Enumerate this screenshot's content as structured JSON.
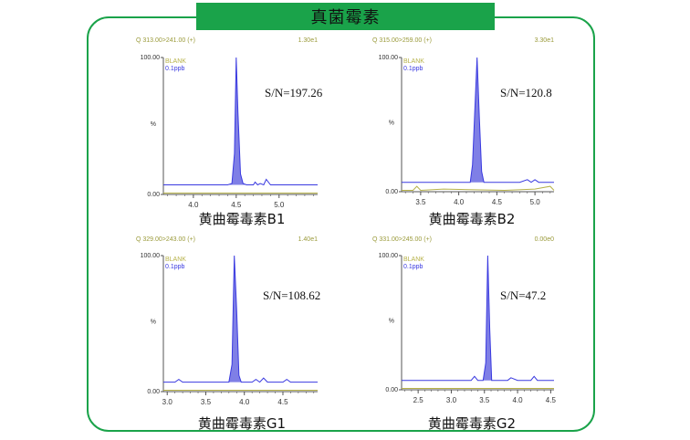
{
  "banner_title": "真菌霉素",
  "colors": {
    "border": "#1aa34a",
    "banner": "#1aa34a",
    "sample": "#3a3ae0",
    "sample_fill": "#7f7fe6",
    "blank": "#b7b24a",
    "header_text": "#9a9a3a",
    "axis": "#555555"
  },
  "chart_data": [
    {
      "type": "line",
      "header_left": "Q 313.00>241.00 (+)",
      "header_right": "1.30e1",
      "legend": [
        "BLANK",
        "0.1ppb"
      ],
      "ylabel": "%",
      "ytick_labels": [
        "100.00",
        "0.00"
      ],
      "xlim": [
        3.65,
        5.45
      ],
      "ylim": [
        0,
        100
      ],
      "xticks": [
        4.0,
        4.5,
        5.0
      ],
      "xtick_labels": [
        "4.0",
        "4.5",
        "5.0"
      ],
      "sn_label": "S/N=197.26",
      "caption": "黄曲霉毒素B1",
      "series": [
        {
          "name": "0.1ppb",
          "x": [
            3.65,
            4.0,
            4.4,
            4.45,
            4.48,
            4.5,
            4.52,
            4.55,
            4.58,
            4.62,
            4.65,
            4.7,
            4.72,
            4.75,
            4.78,
            4.82,
            4.85,
            4.9,
            5.0,
            5.2,
            5.45
          ],
          "y": [
            7,
            7,
            7,
            8,
            30,
            100,
            60,
            15,
            8,
            7,
            7,
            7,
            9,
            7,
            8,
            7,
            11,
            7,
            7,
            7,
            7
          ]
        },
        {
          "name": "BLANK",
          "x": [
            3.65,
            4.0,
            4.5,
            5.0,
            5.45
          ],
          "y": [
            1,
            1,
            1,
            1,
            1
          ]
        }
      ]
    },
    {
      "type": "line",
      "header_left": "Q 315.00>259.00 (+)",
      "header_right": "3.30e1",
      "legend": [
        "BLANK",
        "0.1ppb"
      ],
      "ylabel": "%",
      "ytick_labels": [
        "100.00",
        "0.00"
      ],
      "xlim": [
        3.25,
        5.25
      ],
      "ylim": [
        0,
        100
      ],
      "xticks": [
        3.5,
        4.0,
        4.5,
        5.0
      ],
      "xtick_labels": [
        "3.5",
        "4.0",
        "4.5",
        "5.0"
      ],
      "sn_label": "S/N=120.8",
      "caption": "黄曲霉毒素B2",
      "series": [
        {
          "name": "0.1ppb",
          "x": [
            3.25,
            4.0,
            4.15,
            4.18,
            4.21,
            4.24,
            4.27,
            4.3,
            4.33,
            4.4,
            4.8,
            4.9,
            4.95,
            5.0,
            5.05,
            5.25
          ],
          "y": [
            7,
            7,
            7,
            20,
            60,
            100,
            55,
            15,
            7,
            7,
            7,
            9,
            7,
            9,
            7,
            7
          ]
        },
        {
          "name": "BLANK",
          "x": [
            3.25,
            3.4,
            3.45,
            3.5,
            3.8,
            4.6,
            5.0,
            5.2,
            5.25
          ],
          "y": [
            1,
            1,
            4,
            1,
            2,
            1,
            2,
            4,
            1
          ]
        }
      ]
    },
    {
      "type": "line",
      "header_left": "Q 329.00>243.00 (+)",
      "header_right": "1.40e1",
      "legend": [
        "BLANK",
        "0.1ppb"
      ],
      "ylabel": "%",
      "ytick_labels": [
        "100.00",
        "0.00"
      ],
      "xlim": [
        2.95,
        4.95
      ],
      "ylim": [
        0,
        100
      ],
      "xticks": [
        3.0,
        3.5,
        4.0,
        4.5
      ],
      "xtick_labels": [
        "3.0",
        "3.5",
        "4.0",
        "4.5"
      ],
      "sn_label": "S/N=108.62",
      "caption": "黄曲霉毒素G1",
      "series": [
        {
          "name": "0.1ppb",
          "x": [
            2.95,
            3.1,
            3.15,
            3.2,
            3.7,
            3.8,
            3.84,
            3.87,
            3.9,
            3.93,
            3.96,
            4.0,
            4.1,
            4.15,
            4.2,
            4.25,
            4.3,
            4.5,
            4.55,
            4.6,
            4.95
          ],
          "y": [
            7,
            7,
            9,
            7,
            7,
            7,
            20,
            100,
            60,
            12,
            7,
            7,
            7,
            9,
            7,
            10,
            7,
            7,
            9,
            7,
            7
          ]
        },
        {
          "name": "BLANK",
          "x": [
            2.95,
            3.5,
            4.0,
            4.5,
            4.95
          ],
          "y": [
            1,
            1,
            1,
            1,
            1
          ]
        }
      ]
    },
    {
      "type": "line",
      "header_left": "Q 331.00>245.00 (+)",
      "header_right": "0.00e0",
      "legend": [
        "BLANK",
        "0.1ppb"
      ],
      "ylabel": "%",
      "ytick_labels": [
        "100.00",
        "0.00"
      ],
      "xlim": [
        2.25,
        4.55
      ],
      "ylim": [
        0,
        100
      ],
      "xticks": [
        2.5,
        3.0,
        3.5,
        4.0,
        4.5
      ],
      "xtick_labels": [
        "2.5",
        "3.0",
        "3.5",
        "4.0",
        "4.5"
      ],
      "sn_label": "S/N=47.2",
      "caption": "黄曲霉毒素G2",
      "series": [
        {
          "name": "0.1ppb",
          "x": [
            2.25,
            3.3,
            3.35,
            3.4,
            3.48,
            3.52,
            3.55,
            3.58,
            3.61,
            3.7,
            3.85,
            3.9,
            4.0,
            4.2,
            4.25,
            4.3,
            4.55
          ],
          "y": [
            7,
            7,
            10,
            7,
            7,
            20,
            100,
            45,
            7,
            7,
            7,
            9,
            7,
            7,
            10,
            7,
            7
          ]
        },
        {
          "name": "BLANK",
          "x": [
            2.25,
            3.0,
            3.5,
            4.0,
            4.55
          ],
          "y": [
            1,
            1,
            1,
            1,
            1
          ]
        }
      ]
    }
  ]
}
